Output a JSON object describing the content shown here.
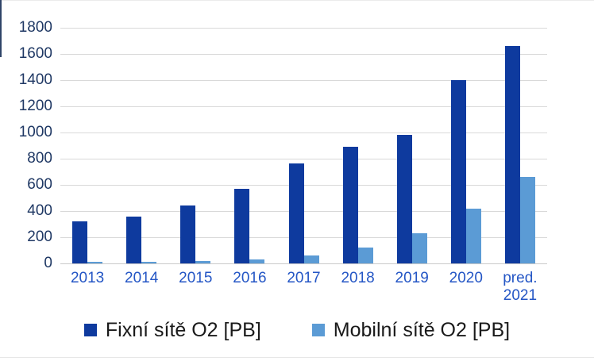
{
  "chart_data": {
    "type": "bar",
    "title": "",
    "categories": [
      "2013",
      "2014",
      "2015",
      "2016",
      "2017",
      "2018",
      "2019",
      "2020",
      "pred.\n2021"
    ],
    "series": [
      {
        "name": "Fixní sítě O2 [PB]",
        "color": "#0e3a9e",
        "values": [
          320,
          360,
          440,
          570,
          760,
          890,
          980,
          1400,
          1660
        ]
      },
      {
        "name": "Mobilní sítě O2 [PB]",
        "color": "#5b9bd5",
        "values": [
          10,
          12,
          18,
          30,
          60,
          120,
          230,
          420,
          660
        ]
      }
    ],
    "xlabel": "",
    "ylabel": "",
    "ylim": [
      0,
      1800
    ],
    "ytick_step": 200,
    "yticks": [
      0,
      200,
      400,
      600,
      800,
      1000,
      1200,
      1400,
      1600,
      1800
    ],
    "grid": true,
    "legend_position": "bottom"
  },
  "style": {
    "grid_color": "#d9d9d9",
    "axis_line_color": "#c9c9c9",
    "y_label_color": "#1f3864",
    "x_label_color": "#2456c5",
    "legend_text_color": "#1a1a1a"
  }
}
